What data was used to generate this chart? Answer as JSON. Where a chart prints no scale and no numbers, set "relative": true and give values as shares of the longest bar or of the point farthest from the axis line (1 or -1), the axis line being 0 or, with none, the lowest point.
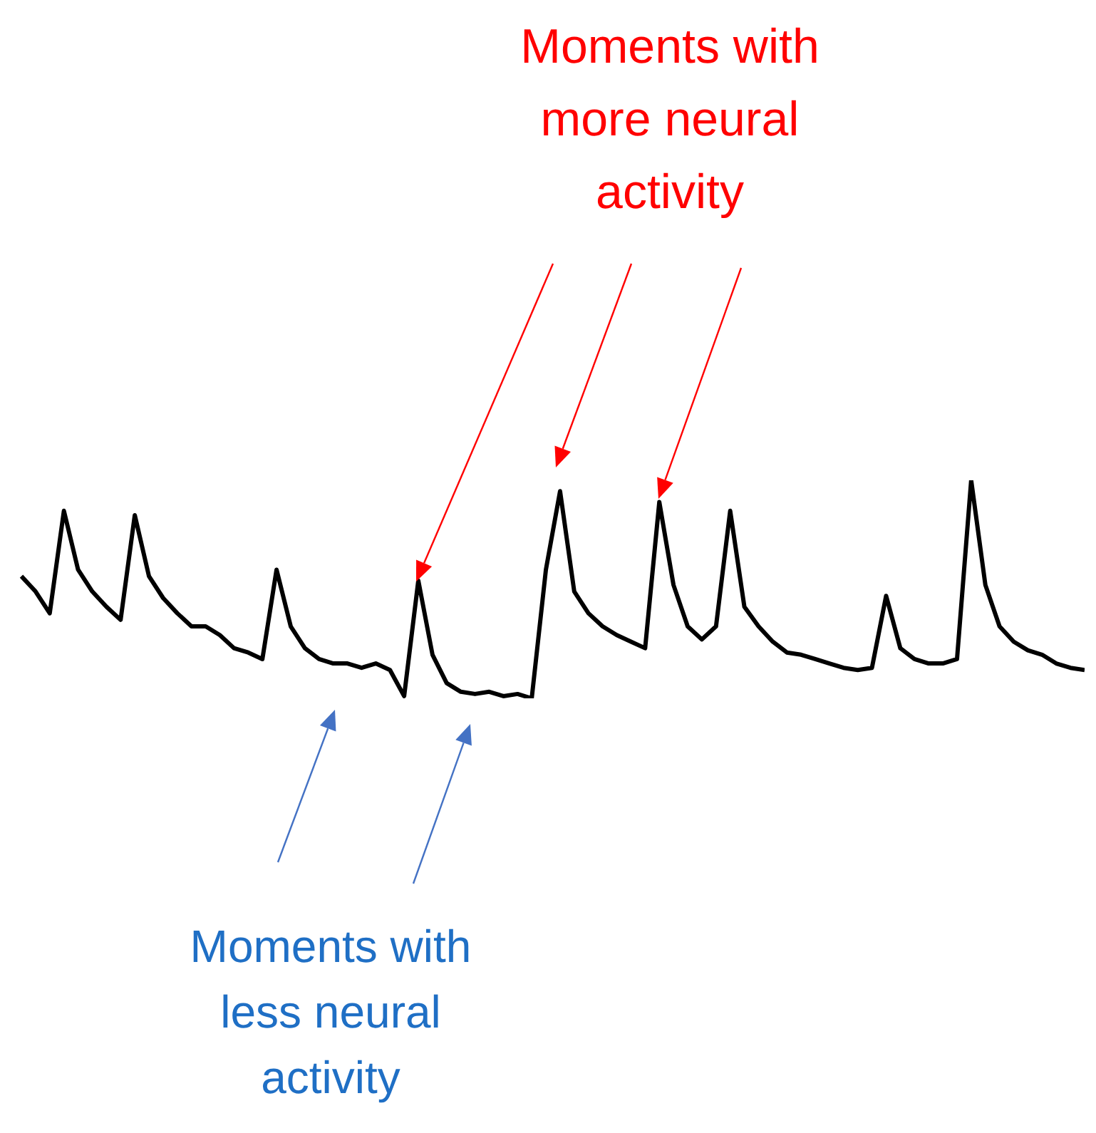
{
  "chart_data": {
    "type": "line",
    "relative": true,
    "legend": false,
    "marker": "none",
    "line_style": "solid",
    "categories": [
      null,
      null,
      null,
      null,
      null,
      null,
      null,
      null,
      null,
      null,
      null,
      null,
      null,
      null,
      null,
      null,
      null,
      null,
      null,
      null,
      null,
      null,
      null,
      null,
      null,
      null,
      null,
      null,
      null,
      null,
      null,
      null,
      null,
      null,
      null,
      null,
      null,
      null,
      null,
      null,
      null,
      null,
      null,
      null,
      null,
      null,
      null,
      null,
      null,
      null,
      null,
      null,
      null,
      null,
      null,
      null,
      null,
      null,
      null,
      null,
      null,
      null,
      null,
      null,
      null,
      null,
      null,
      null,
      null,
      null,
      null,
      null,
      null,
      null,
      null,
      null
    ],
    "series": [
      {
        "color": "#000000",
        "values": [
          0.56,
          0.49,
          0.39,
          0.86,
          0.59,
          0.49,
          0.42,
          0.36,
          0.84,
          0.56,
          0.46,
          0.39,
          0.33,
          0.33,
          0.29,
          0.23,
          0.21,
          0.18,
          0.59,
          0.33,
          0.23,
          0.18,
          0.16,
          0.16,
          0.14,
          0.16,
          0.13,
          0.01,
          0.54,
          0.2,
          0.07,
          0.03,
          0.02,
          0.03,
          0.01,
          0.02,
          0,
          0.59,
          0.95,
          0.49,
          0.39,
          0.33,
          0.29,
          0.26,
          0.23,
          0.9,
          0.52,
          0.33,
          0.27,
          0.33,
          0.86,
          0.42,
          0.33,
          0.26,
          0.21,
          0.2,
          0.18,
          0.16,
          0.14,
          0.13,
          0.14,
          0.47,
          0.23,
          0.18,
          0.16,
          0.16,
          0.18,
          1,
          0.52,
          0.33,
          0.26,
          0.22,
          0.2,
          0.16,
          0.14,
          0.13
        ]
      }
    ],
    "annotations": [
      "Moments with more neural activity",
      "Moments with less neural activity"
    ]
  }
}
